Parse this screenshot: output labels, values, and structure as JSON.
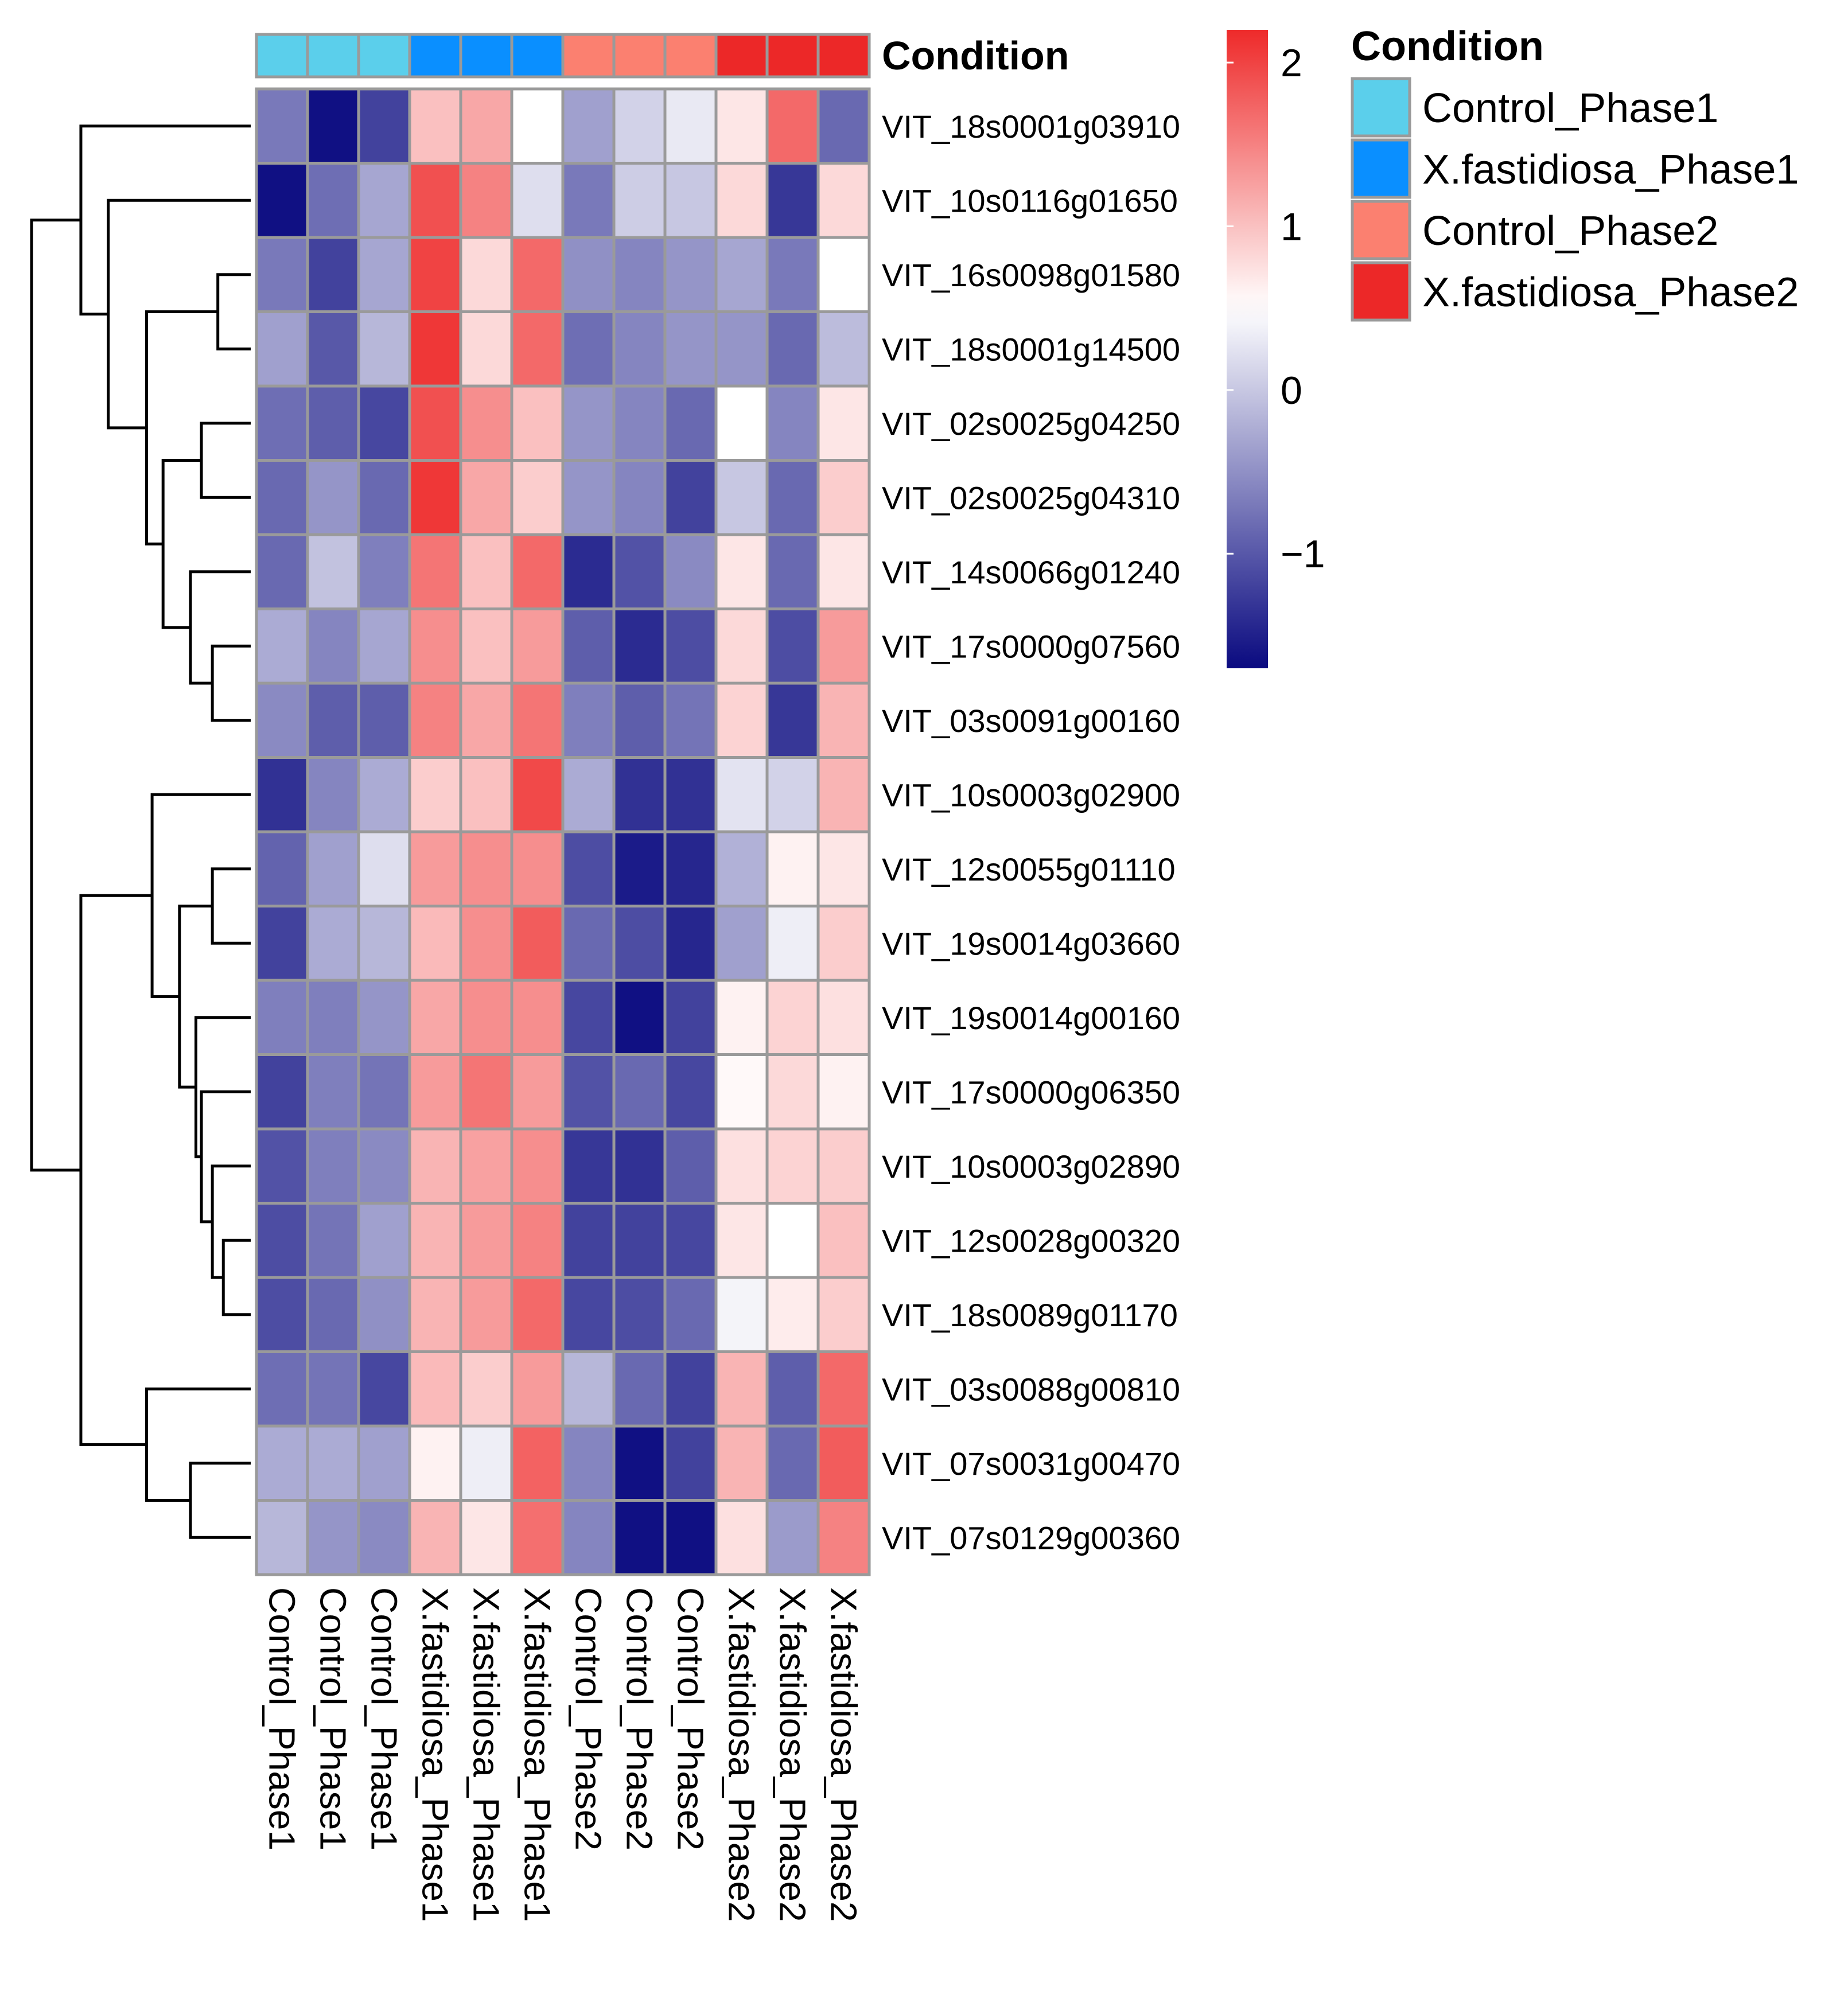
{
  "chart_data": {
    "type": "heatmap",
    "columns": [
      "Control_Phase1",
      "Control_Phase1",
      "Control_Phase1",
      "X.fastidiosa_Phase1",
      "X.fastidiosa_Phase1",
      "X.fastidiosa_Phase1",
      "Control_Phase2",
      "Control_Phase2",
      "Control_Phase2",
      "X.fastidiosa_Phase2",
      "X.fastidiosa_Phase2",
      "X.fastidiosa_Phase2"
    ],
    "rows": [
      "VIT_18s0001g03910",
      "VIT_10s0116g01650",
      "VIT_16s0098g01580",
      "VIT_18s0001g14500",
      "VIT_02s0025g04250",
      "VIT_02s0025g04310",
      "VIT_14s0066g01240",
      "VIT_17s0000g07560",
      "VIT_03s0091g00160",
      "VIT_10s0003g02900",
      "VIT_12s0055g01110",
      "VIT_19s0014g03660",
      "VIT_19s0014g00160",
      "VIT_17s0000g06350",
      "VIT_10s0003g02890",
      "VIT_12s0028g00320",
      "VIT_18s0089g01170",
      "VIT_03s0088g00810",
      "VIT_07s0031g00470",
      "VIT_07s0129g00360"
    ],
    "values": [
      [
        -0.7,
        -1.65,
        -1.2,
        1.0,
        1.2,
        0.5,
        -0.35,
        0.1,
        0.3,
        0.7,
        1.7,
        -0.85
      ],
      [
        -1.65,
        -0.8,
        -0.3,
        1.9,
        1.5,
        0.2,
        -0.7,
        0.05,
        0.0,
        0.8,
        -1.3,
        0.8
      ],
      [
        -0.7,
        -1.2,
        -0.3,
        2.0,
        0.8,
        1.7,
        -0.5,
        -0.6,
        -0.45,
        -0.3,
        -0.7,
        0.5
      ],
      [
        -0.35,
        -1.0,
        -0.15,
        2.1,
        0.8,
        1.7,
        -0.8,
        -0.6,
        -0.45,
        -0.45,
        -0.85,
        -0.1
      ],
      [
        -0.8,
        -0.95,
        -1.15,
        1.9,
        1.4,
        1.0,
        -0.45,
        -0.6,
        -0.85,
        0.5,
        -0.6,
        0.7
      ],
      [
        -0.85,
        -0.45,
        -0.85,
        2.1,
        1.2,
        0.9,
        -0.45,
        -0.6,
        -1.2,
        0.0,
        -0.85,
        0.9
      ],
      [
        -0.85,
        -0.05,
        -0.65,
        1.6,
        1.0,
        1.7,
        -1.4,
        -1.05,
        -0.55,
        0.7,
        -0.85,
        0.7
      ],
      [
        -0.25,
        -0.6,
        -0.3,
        1.4,
        1.0,
        1.3,
        -0.95,
        -1.4,
        -1.1,
        0.8,
        -1.1,
        1.3
      ],
      [
        -0.55,
        -0.95,
        -0.95,
        1.5,
        1.2,
        1.6,
        -0.65,
        -0.95,
        -0.75,
        0.85,
        -1.3,
        1.1
      ],
      [
        -1.35,
        -0.6,
        -0.25,
        0.9,
        1.0,
        1.95,
        -0.25,
        -1.35,
        -1.35,
        0.25,
        0.1,
        1.1
      ],
      [
        -0.9,
        -0.35,
        0.2,
        1.3,
        1.4,
        1.4,
        -1.1,
        -1.55,
        -1.45,
        -0.2,
        0.6,
        0.7
      ],
      [
        -1.2,
        -0.25,
        -0.15,
        1.05,
        1.4,
        1.8,
        -0.85,
        -1.1,
        -1.45,
        -0.35,
        0.35,
        0.9
      ],
      [
        -0.65,
        -0.65,
        -0.45,
        1.2,
        1.4,
        1.4,
        -1.15,
        -1.65,
        -1.2,
        0.6,
        0.85,
        0.75
      ],
      [
        -1.2,
        -0.65,
        -0.75,
        1.3,
        1.6,
        1.3,
        -1.05,
        -0.85,
        -1.15,
        0.55,
        0.8,
        0.6
      ],
      [
        -1.05,
        -0.65,
        -0.55,
        1.1,
        1.25,
        1.4,
        -1.3,
        -1.35,
        -0.95,
        0.75,
        0.85,
        0.9
      ],
      [
        -1.1,
        -0.75,
        -0.35,
        1.1,
        1.3,
        1.5,
        -1.2,
        -1.2,
        -1.15,
        0.7,
        0.5,
        1.0
      ],
      [
        -1.1,
        -0.85,
        -0.5,
        1.1,
        1.3,
        1.7,
        -1.15,
        -1.1,
        -0.85,
        0.4,
        0.65,
        0.9
      ],
      [
        -0.8,
        -0.75,
        -1.15,
        1.05,
        0.9,
        1.3,
        -0.15,
        -0.85,
        -1.2,
        1.1,
        -0.95,
        1.7
      ],
      [
        -0.25,
        -0.25,
        -0.35,
        0.6,
        0.35,
        1.75,
        -0.6,
        -1.65,
        -1.2,
        1.1,
        -0.85,
        1.8
      ],
      [
        -0.15,
        -0.45,
        -0.55,
        1.1,
        0.7,
        1.65,
        -0.6,
        -1.65,
        -1.65,
        0.75,
        -0.4,
        1.5
      ]
    ],
    "color_scale": {
      "min": -1.7,
      "mid": 0.5,
      "max": 2.2,
      "low_color": "#0a0a80",
      "mid_color": "#ffffff",
      "high_color": "#ee2a2a",
      "ticks": [
        {
          "value": 2,
          "label": "2"
        },
        {
          "value": 1,
          "label": "1"
        },
        {
          "value": 0,
          "label": "0"
        },
        {
          "value": -1,
          "label": "−1"
        }
      ]
    },
    "column_annotation": {
      "title": "Condition",
      "groups": [
        "Control_Phase1",
        "Control_Phase1",
        "Control_Phase1",
        "X.fastidiosa_Phase1",
        "X.fastidiosa_Phase1",
        "X.fastidiosa_Phase1",
        "Control_Phase2",
        "Control_Phase2",
        "Control_Phase2",
        "X.fastidiosa_Phase2",
        "X.fastidiosa_Phase2",
        "X.fastidiosa_Phase2"
      ]
    },
    "legend": {
      "title": "Condition",
      "entries": [
        {
          "label": "Control_Phase1",
          "color": "#5bcfeb"
        },
        {
          "label": "X.fastidiosa_Phase1",
          "color": "#0a8fff"
        },
        {
          "label": "Control_Phase2",
          "color": "#fb8070"
        },
        {
          "label": "X.fastidiosa_Phase2",
          "color": "#ec2828"
        }
      ],
      "placement": "top-right"
    },
    "row_dendrogram": {
      "nodes": [
        {
          "id": "a",
          "children": [
            2,
            3
          ],
          "height": 0.06
        },
        {
          "id": "b",
          "children": [
            4,
            5
          ],
          "height": 0.09
        },
        {
          "id": "c",
          "children": [
            7,
            8
          ],
          "height": 0.07
        },
        {
          "id": "d",
          "children": [
            6,
            "c"
          ],
          "height": 0.11
        },
        {
          "id": "e",
          "children": [
            "b",
            "d"
          ],
          "height": 0.16
        },
        {
          "id": "f",
          "children": [
            "a",
            "e"
          ],
          "height": 0.19
        },
        {
          "id": "g",
          "children": [
            1,
            "f"
          ],
          "height": 0.26
        },
        {
          "id": "h",
          "children": [
            0,
            "g"
          ],
          "height": 0.31
        },
        {
          "id": "i",
          "children": [
            10,
            11
          ],
          "height": 0.07
        },
        {
          "id": "j",
          "children": [
            15,
            16
          ],
          "height": 0.05
        },
        {
          "id": "k",
          "children": [
            14,
            "j"
          ],
          "height": 0.07
        },
        {
          "id": "l",
          "children": [
            13,
            "k"
          ],
          "height": 0.09
        },
        {
          "id": "m",
          "children": [
            12,
            "l"
          ],
          "height": 0.1
        },
        {
          "id": "n",
          "children": [
            "i",
            "m"
          ],
          "height": 0.13
        },
        {
          "id": "o",
          "children": [
            9,
            "n"
          ],
          "height": 0.18
        },
        {
          "id": "p",
          "children": [
            18,
            19
          ],
          "height": 0.11
        },
        {
          "id": "q",
          "children": [
            17,
            "p"
          ],
          "height": 0.19
        },
        {
          "id": "r",
          "children": [
            "o",
            "q"
          ],
          "height": 0.31
        },
        {
          "id": "s",
          "children": [
            "h",
            "r"
          ],
          "height": 0.4
        }
      ]
    }
  }
}
